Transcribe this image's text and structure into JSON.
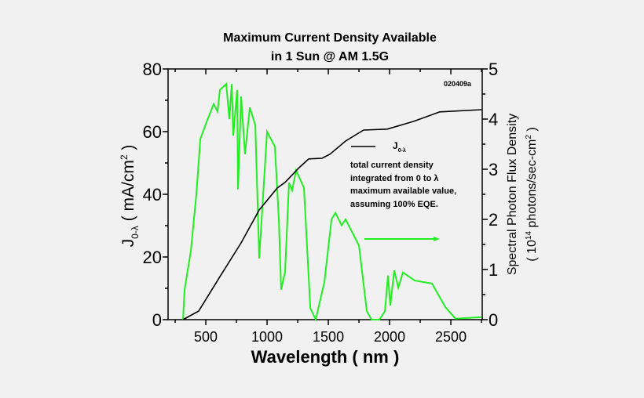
{
  "chart_data": {
    "type": "line",
    "title": [
      "Maximum Current Density Available",
      "in 1 Sun @ AM 1.5G"
    ],
    "figure_code": "020409a",
    "xlabel": "Wavelength ( nm )",
    "ylabel_left": {
      "main": "J",
      "sub": "0-λ",
      "unit": " ( mA/cm",
      "sup": "2",
      "end": " )"
    },
    "ylabel_right": {
      "line1": "Spectral Photon Flux Density",
      "line2a": "( 10",
      "line2sup": "14",
      "line2b": " photons/sec-cm",
      "line2sup2": "2",
      "line2c": " )"
    },
    "xlim": [
      192,
      2756
    ],
    "ylim_left": [
      0,
      80
    ],
    "ylim_right": [
      0,
      5
    ],
    "x_ticks": [
      500,
      1000,
      1500,
      2000,
      2500
    ],
    "y_left_ticks": [
      0,
      20,
      40,
      60,
      80
    ],
    "y_right_ticks": [
      0,
      1,
      2,
      3,
      4,
      5
    ],
    "grid": false,
    "colors": {
      "current": "#000000",
      "flux": "#22ee22",
      "background": "#f1f1f1"
    },
    "legend": {
      "placement": "right-middle",
      "current_label": "J",
      "current_sub": "0-λ",
      "lines": [
        "total current density",
        "integrated from 0 to λ",
        "maximum available value,",
        "assuming 100% EQE."
      ]
    },
    "series": [
      {
        "axis": "left",
        "x": [
          314,
          442,
          615,
          788,
          936,
          1083,
          1147,
          1256,
          1340,
          1449,
          1513,
          1641,
          1788,
          1981,
          2199,
          2410,
          2750
        ],
        "y": [
          0,
          2.75,
          13.7,
          24.5,
          35,
          42,
          43.8,
          48.3,
          51.3,
          51.5,
          52.8,
          57,
          60.5,
          60.8,
          63.3,
          66.3,
          67
        ]
      },
      {
        "axis": "right",
        "x": [
          314,
          327,
          378,
          423,
          455,
          500,
          564,
          596,
          615,
          667,
          692,
          712,
          724,
          756,
          763,
          788,
          820,
          859,
          904,
          936,
          1000,
          1064,
          1096,
          1115,
          1147,
          1179,
          1205,
          1237,
          1301,
          1353,
          1397,
          1468,
          1526,
          1558,
          1609,
          1641,
          1750,
          1814,
          1853,
          1917,
          1962,
          1987,
          2006,
          2038,
          2071,
          2109,
          2205,
          2346,
          2455,
          2538,
          2750
        ],
        "y": [
          0,
          0.6,
          1.37,
          2.5,
          3.6,
          3.9,
          4.3,
          4.15,
          4.58,
          4.7,
          4.0,
          4.7,
          3.67,
          4.58,
          2.6,
          4.45,
          3.3,
          4.23,
          3.88,
          1.22,
          3.75,
          3.45,
          2.0,
          0.6,
          0.95,
          2.73,
          2.58,
          2.98,
          2.63,
          0.23,
          0,
          0.75,
          2.0,
          2.13,
          1.88,
          2.0,
          1.48,
          0.17,
          0,
          0,
          0.17,
          0.88,
          0.28,
          0.98,
          0.64,
          0.94,
          0.78,
          0.72,
          0.25,
          0.02,
          0.05
        ]
      }
    ]
  }
}
